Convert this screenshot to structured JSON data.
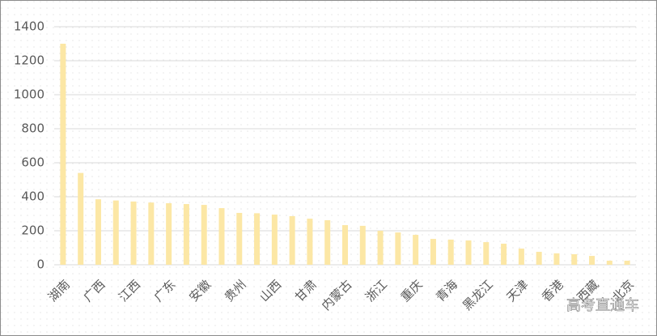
{
  "chart_data": {
    "type": "bar",
    "categories": [
      "湖南",
      null,
      "广西",
      null,
      "江西",
      null,
      "广东",
      null,
      "安徽",
      null,
      "贵州",
      null,
      "山西",
      null,
      "甘肃",
      null,
      "内蒙古",
      null,
      "浙江",
      null,
      "重庆",
      null,
      "青海",
      null,
      "黑龙江",
      null,
      "天津",
      null,
      "香港",
      null,
      "西藏",
      null,
      "北京"
    ],
    "values": [
      1300,
      540,
      385,
      378,
      372,
      366,
      362,
      357,
      352,
      333,
      305,
      303,
      295,
      286,
      271,
      262,
      233,
      229,
      200,
      190,
      176,
      152,
      148,
      143,
      133,
      124,
      95,
      76,
      67,
      62,
      52,
      24,
      24
    ],
    "color": "#fce7a5",
    "ylim": [
      0,
      1400
    ],
    "yticks": [
      0,
      200,
      400,
      600,
      800,
      1000,
      1200,
      1400
    ],
    "grid": true
  },
  "watermark": "高考直通车"
}
